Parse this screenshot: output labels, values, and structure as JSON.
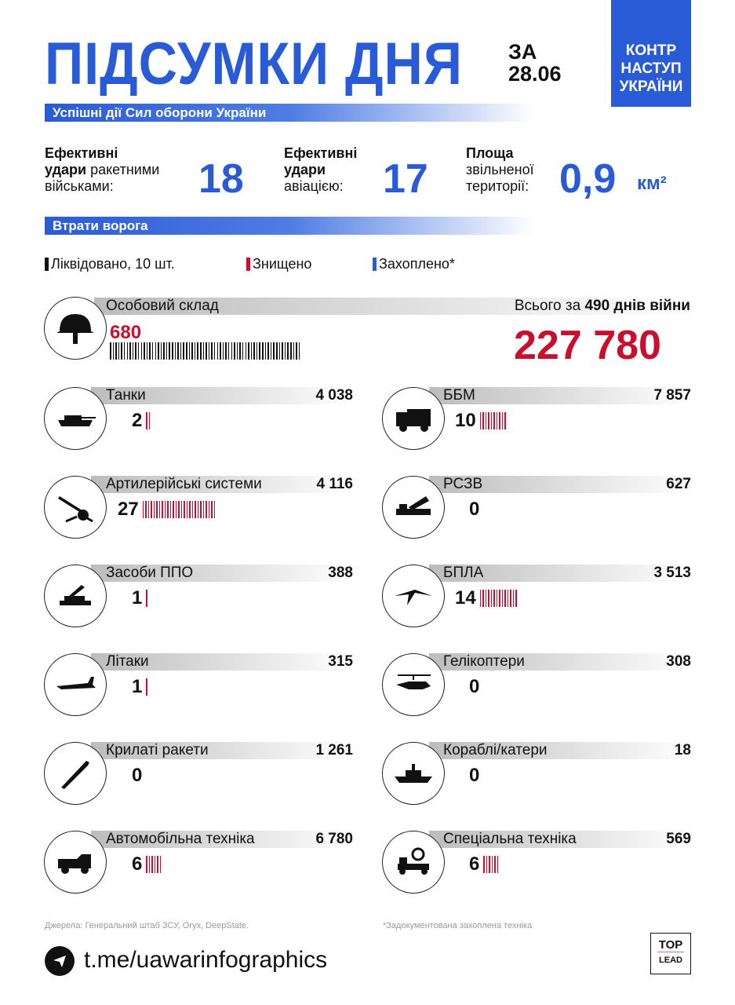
{
  "header": {
    "title": "ПІДСУМКИ ДНЯ",
    "date_prefix": "ЗА",
    "date": "28.06",
    "brand": [
      "КОНТР",
      "НАСТУП",
      "УКРАЇНИ"
    ]
  },
  "section1": "Успішні дії Сил оборони України",
  "stats": [
    {
      "bold1": "Ефективні",
      "bold2": "удари",
      "rest": "ракетними",
      "line3": "військами:",
      "value": "18"
    },
    {
      "bold1": "Ефективні",
      "bold2": "удари",
      "rest": "",
      "line3": "авіацією:",
      "value": "17"
    },
    {
      "bold1": "Площа",
      "bold2": "",
      "rest": "звільненої",
      "line3": "території:",
      "value": "0,9",
      "unit": "км²"
    }
  ],
  "section2": "Втрати ворога",
  "legend": [
    {
      "label": "Ліквідовано, 10 шт.",
      "color": "#111111"
    },
    {
      "label": "Знищено",
      "color": "#c8102e"
    },
    {
      "label": "Захоплено*",
      "color": "#2a5bd7"
    }
  ],
  "personnel": {
    "label": "Особовий склад",
    "count": "680",
    "tally": 68,
    "total_prefix": "Всього за",
    "days": "490 днів війни",
    "total": "227 780"
  },
  "items_left": [
    {
      "label": "Танки",
      "total": "4 038",
      "count": "2",
      "destroyed": 2,
      "icon": "tank-icon"
    },
    {
      "label": "Артилерійські системи",
      "total": "4 116",
      "count": "27",
      "destroyed": 27,
      "icon": "artillery-icon"
    },
    {
      "label": "Засоби ППО",
      "total": "388",
      "count": "1",
      "destroyed": 1,
      "icon": "air-defense-icon"
    },
    {
      "label": "Літаки",
      "total": "315",
      "count": "1",
      "destroyed": 1,
      "icon": "jet-icon"
    },
    {
      "label": "Крилаті ракети",
      "total": "1 261",
      "count": "0",
      "destroyed": 0,
      "icon": "missile-icon"
    },
    {
      "label": "Автомобільна техніка",
      "total": "6 780",
      "count": "6",
      "destroyed": 6,
      "icon": "truck-icon"
    }
  ],
  "items_right": [
    {
      "label": "ББМ",
      "total": "7 857",
      "count": "10",
      "destroyed": 10,
      "icon": "apc-icon"
    },
    {
      "label": "РСЗВ",
      "total": "627",
      "count": "0",
      "destroyed": 0,
      "icon": "mlrs-icon"
    },
    {
      "label": "БПЛА",
      "total": "3 513",
      "count": "14",
      "destroyed": 14,
      "icon": "drone-icon"
    },
    {
      "label": "Гелікоптери",
      "total": "308",
      "count": "0",
      "destroyed": 0,
      "icon": "helicopter-icon"
    },
    {
      "label": "Кораблі/катери",
      "total": "18",
      "count": "0",
      "destroyed": 0,
      "icon": "ship-icon"
    },
    {
      "label": "Спеціальна техніка",
      "total": "569",
      "count": "6",
      "destroyed": 6,
      "icon": "special-vehicle-icon"
    }
  ],
  "footer": {
    "sources": "Джерела: Генеральний штаб ЗСУ, Oryx, DeepState.",
    "note": "*Задокументована захоплена техніка",
    "link": "t.me/uawarinfographics",
    "logo_top": "TOP",
    "logo_bottom": "LEAD"
  }
}
